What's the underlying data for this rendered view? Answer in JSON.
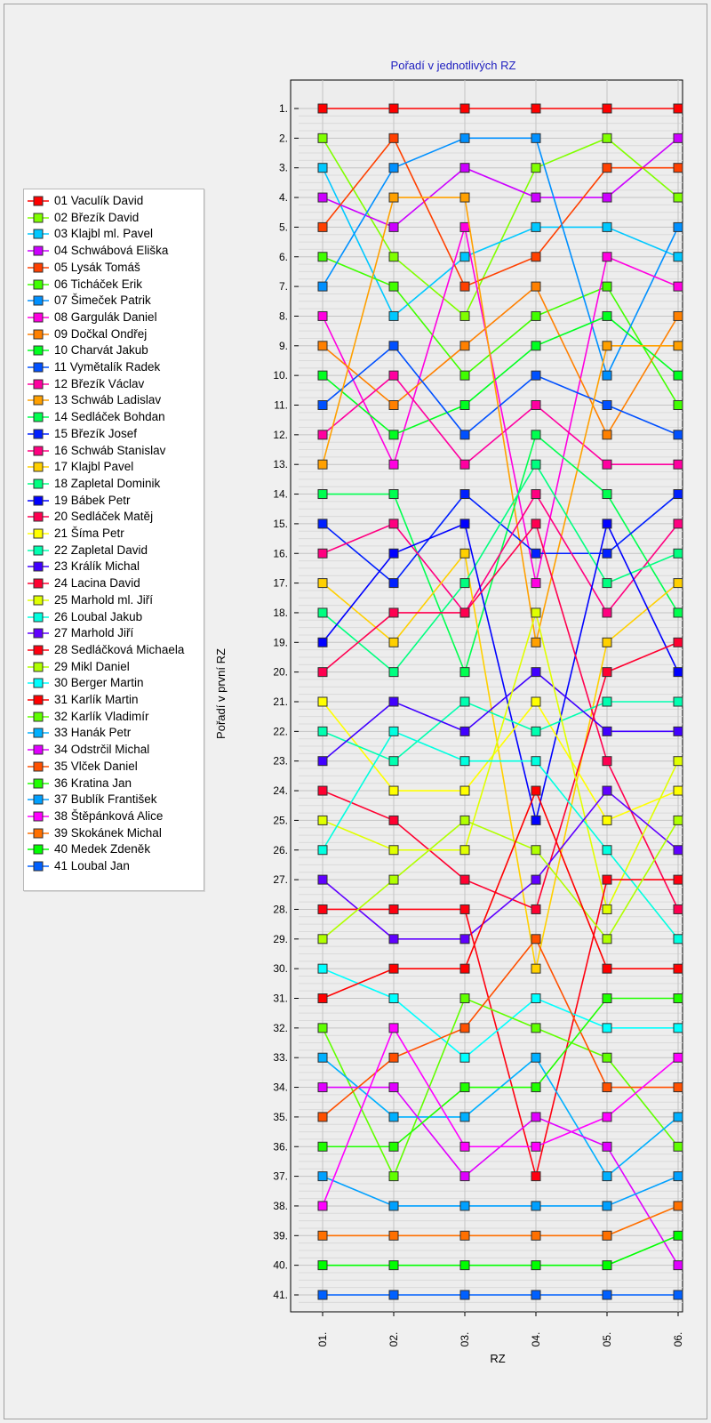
{
  "chart_data": {
    "type": "line",
    "title": "Pořadí v jednotlivých RZ",
    "xlabel": "RZ",
    "ylabel": "Pořadí v první RZ",
    "x": [
      "01.",
      "02.",
      "03.",
      "04.",
      "05.",
      "06."
    ],
    "y_ticks": [
      "1.",
      "2.",
      "3.",
      "4.",
      "5.",
      "6.",
      "7.",
      "8.",
      "9.",
      "10.",
      "11.",
      "12.",
      "13.",
      "14.",
      "15.",
      "16.",
      "17.",
      "18.",
      "19.",
      "20.",
      "21.",
      "22.",
      "23.",
      "24.",
      "25.",
      "26.",
      "27.",
      "28.",
      "29.",
      "30.",
      "31.",
      "32.",
      "33.",
      "34.",
      "35.",
      "36.",
      "37.",
      "38.",
      "39.",
      "40.",
      "41."
    ],
    "ylim": [
      1,
      41
    ],
    "y_inverted": true,
    "grid": true,
    "legend_position": "left",
    "series": [
      {
        "name": "01 Vaculík David",
        "color": "#ff0000",
        "values": [
          1,
          1,
          1,
          1,
          1,
          1
        ]
      },
      {
        "name": "02 Březík David",
        "color": "#80ff00",
        "values": [
          2,
          6,
          8,
          3,
          2,
          4
        ]
      },
      {
        "name": "03 Klajbl ml. Pavel",
        "color": "#00c8ff",
        "values": [
          3,
          8,
          6,
          5,
          5,
          6
        ]
      },
      {
        "name": "04 Schwábová Eliška",
        "color": "#cc00ff",
        "values": [
          4,
          5,
          3,
          4,
          4,
          2
        ]
      },
      {
        "name": "05 Lysák Tomáš",
        "color": "#ff4000",
        "values": [
          5,
          2,
          7,
          6,
          3,
          3
        ]
      },
      {
        "name": "06 Ticháček Erik",
        "color": "#40ff00",
        "values": [
          6,
          7,
          10,
          8,
          7,
          11
        ]
      },
      {
        "name": "07 Šimeček Patrik",
        "color": "#0090ff",
        "values": [
          7,
          3,
          2,
          2,
          10,
          5
        ]
      },
      {
        "name": "08 Gargulák Daniel",
        "color": "#ff00e0",
        "values": [
          8,
          13,
          5,
          17,
          6,
          7
        ]
      },
      {
        "name": "09 Dočkal Ondřej",
        "color": "#ff8000",
        "values": [
          9,
          11,
          9,
          7,
          12,
          8
        ]
      },
      {
        "name": "10 Charvát Jakub",
        "color": "#00ff20",
        "values": [
          10,
          12,
          11,
          9,
          8,
          10
        ]
      },
      {
        "name": "11 Vymětalík Radek",
        "color": "#0050ff",
        "values": [
          11,
          9,
          12,
          10,
          11,
          12
        ]
      },
      {
        "name": "12 Březík Václav",
        "color": "#ff00a0",
        "values": [
          12,
          10,
          13,
          11,
          13,
          13
        ]
      },
      {
        "name": "13 Schwáb Ladislav",
        "color": "#ffa000",
        "values": [
          13,
          4,
          4,
          19,
          9,
          9
        ]
      },
      {
        "name": "14 Sedláček Bohdan",
        "color": "#00ff50",
        "values": [
          14,
          14,
          20,
          12,
          14,
          18
        ]
      },
      {
        "name": "15 Březík Josef",
        "color": "#0020ff",
        "values": [
          15,
          17,
          14,
          16,
          16,
          14
        ]
      },
      {
        "name": "16 Schwáb Stanislav",
        "color": "#ff0080",
        "values": [
          16,
          15,
          18,
          14,
          18,
          15
        ]
      },
      {
        "name": "17 Klajbl Pavel",
        "color": "#ffd000",
        "values": [
          17,
          19,
          16,
          30,
          19,
          17
        ]
      },
      {
        "name": "18 Zapletal Dominik",
        "color": "#00ff80",
        "values": [
          18,
          20,
          17,
          13,
          17,
          16
        ]
      },
      {
        "name": "19 Bábek Petr",
        "color": "#0000ff",
        "values": [
          19,
          16,
          15,
          25,
          15,
          20
        ]
      },
      {
        "name": "20 Sedláček Matěj",
        "color": "#ff0050",
        "values": [
          20,
          18,
          18,
          15,
          23,
          28
        ]
      },
      {
        "name": "21 Šíma Petr",
        "color": "#ffff00",
        "values": [
          21,
          24,
          24,
          21,
          25,
          24
        ]
      },
      {
        "name": "22 Zapletal David",
        "color": "#00ffb0",
        "values": [
          22,
          23,
          21,
          22,
          21,
          21
        ]
      },
      {
        "name": "23 Králík Michal",
        "color": "#4000ff",
        "values": [
          23,
          21,
          22,
          20,
          22,
          22
        ]
      },
      {
        "name": "24 Lacina David",
        "color": "#ff0030",
        "values": [
          24,
          25,
          27,
          28,
          20,
          19
        ]
      },
      {
        "name": "25 Marhold ml. Jiří",
        "color": "#e0ff00",
        "values": [
          25,
          26,
          26,
          18,
          28,
          23
        ]
      },
      {
        "name": "26 Loubal Jakub",
        "color": "#00ffe0",
        "values": [
          26,
          22,
          23,
          23,
          26,
          29
        ]
      },
      {
        "name": "27 Marhold Jiří",
        "color": "#6000ff",
        "values": [
          27,
          29,
          29,
          27,
          24,
          26
        ]
      },
      {
        "name": "28 Sedláčková Michaela",
        "color": "#ff0010",
        "values": [
          28,
          28,
          28,
          37,
          27,
          27
        ]
      },
      {
        "name": "29 Mikl Daniel",
        "color": "#b0ff00",
        "values": [
          29,
          27,
          25,
          26,
          29,
          25
        ]
      },
      {
        "name": "30 Berger Martin",
        "color": "#00ffff",
        "values": [
          30,
          31,
          33,
          31,
          32,
          32
        ]
      },
      {
        "name": "31 Karlík Martin",
        "color": "#ff0000",
        "values": [
          31,
          30,
          30,
          24,
          30,
          30
        ]
      },
      {
        "name": "32 Karlík Vladimír",
        "color": "#60ff00",
        "values": [
          32,
          37,
          31,
          32,
          33,
          36
        ]
      },
      {
        "name": "33 Hanák Petr",
        "color": "#00b0ff",
        "values": [
          33,
          35,
          35,
          33,
          37,
          35
        ]
      },
      {
        "name": "34 Odstrčil Michal",
        "color": "#e000ff",
        "values": [
          34,
          34,
          37,
          35,
          36,
          40
        ]
      },
      {
        "name": "35 Vlček Daniel",
        "color": "#ff5000",
        "values": [
          35,
          33,
          32,
          29,
          34,
          34
        ]
      },
      {
        "name": "36 Kratina Jan",
        "color": "#20ff00",
        "values": [
          36,
          36,
          34,
          34,
          31,
          31
        ]
      },
      {
        "name": "37 Bublík František",
        "color": "#00a0ff",
        "values": [
          37,
          38,
          38,
          38,
          38,
          37
        ]
      },
      {
        "name": "38 Štěpánková Alice",
        "color": "#ff00ff",
        "values": [
          38,
          32,
          36,
          36,
          35,
          33
        ]
      },
      {
        "name": "39 Skokánek Michal",
        "color": "#ff7000",
        "values": [
          39,
          39,
          39,
          39,
          39,
          38
        ]
      },
      {
        "name": "40 Medek Zdeněk",
        "color": "#00ff00",
        "values": [
          40,
          40,
          40,
          40,
          40,
          39
        ]
      },
      {
        "name": "41 Loubal Jan",
        "color": "#0060ff",
        "values": [
          41,
          41,
          41,
          41,
          41,
          41
        ]
      }
    ]
  }
}
